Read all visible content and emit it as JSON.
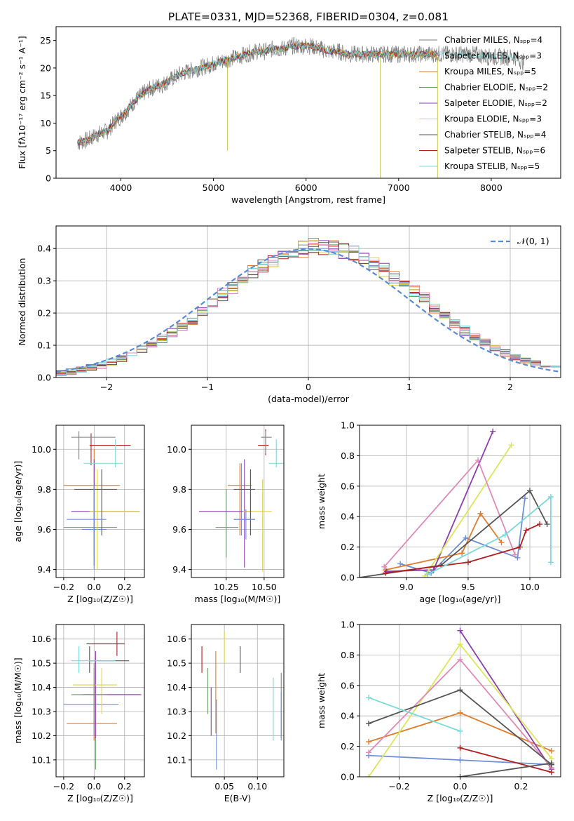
{
  "title": "PLATE=0331, MJD=52368, FIBERID=0304, z=0.081",
  "model_colors": [
    "#7f7f7f",
    "#6e8fd8",
    "#e07c2c",
    "#6b9a6b",
    "#8b3fb0",
    "#e0d14a",
    "#555555",
    "#b01e1e",
    "#7ad9d9"
  ],
  "chart_data": [
    {
      "id": "spectrum",
      "type": "line",
      "xlabel": "wavelength [Angstrom, rest frame]",
      "ylabel": "Flux [fλ10⁻¹⁷ erg cm⁻² s⁻¹ A⁻¹]",
      "xlim": [
        3300,
        8750
      ],
      "ylim": [
        0,
        27.5
      ],
      "xticks": [
        4000,
        5000,
        6000,
        7000,
        8000
      ],
      "yticks": [
        0,
        5,
        10,
        15,
        20,
        25
      ],
      "grid": false,
      "legend_position": "right",
      "legend": [
        "Chabrier MILES, Nₛₚₚ=4",
        "Salpeter MILES, Nₛₚₚ=3",
        "Kroupa MILES, Nₛₚₚ=5",
        "Chabrier ELODIE, Nₛₚₚ=2",
        "Salpeter ELODIE, Nₛₚₚ=2",
        "Kroupa ELODIE, Nₛₚₚ=3",
        "Chabrier STELIB, Nₛₚₚ=4",
        "Salpeter STELIB, Nₛₚₚ=6",
        "Kroupa STELIB, Nₛₚₚ=5"
      ],
      "legend_colors": [
        "#7f7f7f",
        "#6e8fd8",
        "#e07c2c",
        "#6b9a6b",
        "#8b3fb0",
        "#e0d14a",
        "#555555",
        "#b01e1e",
        "#7ad9d9"
      ],
      "continuum": {
        "x": [
          3550,
          3650,
          3750,
          3850,
          3950,
          4050,
          4150,
          4250,
          4350,
          4450,
          4550,
          4650,
          4750,
          4850,
          4950,
          5050,
          5150,
          5250,
          5350,
          5450,
          5550,
          5650,
          5750,
          5850,
          5950,
          6050,
          6150,
          6250,
          6350,
          6450,
          6550,
          6650,
          6750,
          6850,
          6950,
          7050,
          7150,
          7250,
          7350,
          7450,
          7550,
          7650,
          7750,
          7850,
          7950,
          8050,
          8150,
          8250,
          8350,
          8450
        ],
        "y": [
          6.5,
          7,
          8,
          8.5,
          10.5,
          12,
          14,
          15.5,
          16.5,
          17,
          18,
          19,
          19.5,
          20,
          20.5,
          21,
          21.5,
          22,
          22.5,
          23,
          23,
          23.5,
          23.5,
          24,
          24,
          24,
          23.5,
          23,
          23,
          22.5,
          22.5,
          22.5,
          22.5,
          22.5,
          22.5,
          22.5,
          22.5,
          22.5,
          22.5,
          22.5,
          22.5,
          22.5,
          22.5,
          22.5,
          22,
          22,
          22,
          22,
          21,
          19.5
        ]
      }
    },
    {
      "id": "residuals",
      "type": "line",
      "xlabel": "(data-model)/error",
      "ylabel": "Normed distribution",
      "xlim": [
        -2.5,
        2.5
      ],
      "ylim": [
        0,
        0.47
      ],
      "xticks": [
        -2,
        -1,
        0,
        1,
        2
      ],
      "yticks": [
        0.0,
        0.1,
        0.2,
        0.3,
        0.4
      ],
      "xticklabels": [
        "−2",
        "−1",
        "0",
        "1",
        "2"
      ],
      "yticklabels": [
        "0.0",
        "0.1",
        "0.2",
        "0.3",
        "0.4"
      ],
      "grid": true,
      "legend_position": "top-right",
      "legend": [
        "𝒩(0, 1)"
      ],
      "histogram_bin_width": 0.1
    },
    {
      "id": "age-vs-Z",
      "type": "scatter",
      "xlabel": "Z [log₁₀(Z/Z☉)]",
      "ylabel": "age  [log₁₀(age/yr)]",
      "xlim": [
        -0.25,
        0.33
      ],
      "ylim": [
        9.36,
        10.12
      ],
      "xticks": [
        -0.2,
        0.0,
        0.2
      ],
      "yticks": [
        9.4,
        9.6,
        9.8,
        10.0
      ],
      "xticklabels": [
        "−0.2",
        "0.0",
        "0.2"
      ],
      "yticklabels": [
        "9.4",
        "9.6",
        "9.8",
        "10.0"
      ],
      "grid": true,
      "points": [
        {
          "x": 0.0,
          "y": 9.6,
          "xlo": -0.08,
          "xhi": 0.08,
          "ylo": 9.4,
          "yhi": 9.8
        },
        {
          "x": 0.0,
          "y": 9.82,
          "xlo": -0.2,
          "xhi": 0.17,
          "ylo": 9.6,
          "yhi": 10.0
        },
        {
          "x": 0.0,
          "y": 9.61,
          "xlo": -0.2,
          "xhi": 0.15,
          "ylo": 9.47,
          "yhi": 9.75
        },
        {
          "x": 0.0,
          "y": 9.69,
          "xlo": -0.15,
          "xhi": 0.3,
          "ylo": 9.42,
          "yhi": 9.95
        },
        {
          "x": 0.02,
          "y": 9.69,
          "xlo": -0.03,
          "xhi": 0.3,
          "ylo": 9.4,
          "yhi": 9.9
        },
        {
          "x": 0.05,
          "y": 9.8,
          "xlo": -0.13,
          "xhi": 0.15,
          "ylo": 9.57,
          "yhi": 9.9
        },
        {
          "x": -0.02,
          "y": 10.02,
          "xlo": -0.03,
          "xhi": 0.24,
          "ylo": 9.92,
          "yhi": 10.08
        },
        {
          "x": 0.14,
          "y": 9.93,
          "xlo": -0.07,
          "xhi": 0.19,
          "ylo": 9.91,
          "yhi": 10.05
        },
        {
          "x": -0.1,
          "y": 10.06,
          "xlo": -0.15,
          "xhi": 0.14,
          "ylo": 9.95,
          "yhi": 10.09
        },
        {
          "x": 0.0,
          "y": 9.65,
          "xlo": -0.18,
          "xhi": 0.08,
          "ylo": 9.42,
          "yhi": 9.82
        }
      ]
    },
    {
      "id": "age-vs-mass",
      "type": "scatter",
      "xlabel": "mass [log₁₀(M/M☉)]",
      "ylabel": "",
      "xlim": [
        10.02,
        10.63
      ],
      "ylim": [
        9.36,
        10.12
      ],
      "xticks": [
        10.25,
        10.5
      ],
      "yticks": [
        9.4,
        9.6,
        9.8,
        10.0
      ],
      "xticklabels": [
        "10.25",
        "10.50"
      ],
      "yticklabels": [
        "9.4",
        "9.6",
        "9.8",
        "10.0"
      ],
      "grid": true,
      "points": [
        {
          "x": 10.35,
          "y": 9.65,
          "xlo": 10.3,
          "xhi": 10.44,
          "ylo": 9.57,
          "yhi": 9.93
        },
        {
          "x": 10.34,
          "y": 9.82,
          "xlo": 10.26,
          "xhi": 10.42,
          "ylo": 9.57,
          "yhi": 9.93
        },
        {
          "x": 10.25,
          "y": 9.61,
          "xlo": 10.18,
          "xhi": 10.33,
          "ylo": 9.46,
          "yhi": 9.8
        },
        {
          "x": 10.37,
          "y": 9.69,
          "xlo": 10.07,
          "xhi": 10.42,
          "ylo": 9.41,
          "yhi": 9.95
        },
        {
          "x": 10.49,
          "y": 9.69,
          "xlo": 10.36,
          "xhi": 10.55,
          "ylo": 9.39,
          "yhi": 9.85
        },
        {
          "x": 10.41,
          "y": 9.8,
          "xlo": 10.3,
          "xhi": 10.44,
          "ylo": 9.57,
          "yhi": 9.9
        },
        {
          "x": 10.51,
          "y": 10.02,
          "xlo": 10.46,
          "xhi": 10.53,
          "ylo": 9.97,
          "yhi": 10.1
        },
        {
          "x": 10.58,
          "y": 9.93,
          "xlo": 10.53,
          "xhi": 10.63,
          "ylo": 9.91,
          "yhi": 10.05
        },
        {
          "x": 10.51,
          "y": 10.06,
          "xlo": 10.48,
          "xhi": 10.55,
          "ylo": 9.98,
          "yhi": 10.09
        },
        {
          "x": 10.38,
          "y": 9.65,
          "xlo": 10.3,
          "xhi": 10.44,
          "ylo": 9.55,
          "yhi": 9.7
        }
      ]
    },
    {
      "id": "weight-vs-age",
      "type": "line",
      "xlabel": "age  [log₁₀(age/yr)]",
      "ylabel": "mass weight",
      "xlim": [
        8.62,
        10.25
      ],
      "ylim": [
        0,
        1.0
      ],
      "xticks": [
        9.0,
        9.5,
        10.0
      ],
      "yticks": [
        0.0,
        0.2,
        0.4,
        0.6,
        0.8,
        1.0
      ],
      "xticklabels": [
        "9.0",
        "9.5",
        "10.0"
      ],
      "yticklabels": [
        "0.0",
        "0.2",
        "0.4",
        "0.6",
        "0.8",
        "1.0"
      ],
      "grid": true,
      "series": [
        {
          "x": [
            8.95,
            9.2,
            9.48,
            9.9,
            9.96
          ],
          "y": [
            0.09,
            0.03,
            0.26,
            0.13,
            0.52
          ]
        },
        {
          "x": [
            8.83,
            9.45,
            9.6,
            9.77
          ],
          "y": [
            0.05,
            0.16,
            0.42,
            0.23
          ]
        },
        {
          "x": [
            8.84,
            9.22,
            9.7
          ],
          "y": [
            0.04,
            0.05,
            0.96
          ]
        },
        {
          "x": [
            9.15,
            9.85
          ],
          "y": [
            0.01,
            0.87
          ]
        },
        {
          "x": [
            8.82,
            9.58,
            9.88
          ],
          "y": [
            0.07,
            0.77,
            0.15
          ]
        },
        {
          "x": [
            8.62,
            9.28,
            10.0,
            10.14
          ],
          "y": [
            0.0,
            0.08,
            0.57,
            0.35
          ]
        },
        {
          "x": [
            8.83,
            9.5,
            9.92,
            9.97,
            10.08
          ],
          "y": [
            0.03,
            0.1,
            0.2,
            0.31,
            0.35
          ]
        },
        {
          "x": [
            9.17,
            9.8,
            10.17,
            10.17
          ],
          "y": [
            0.02,
            0.28,
            0.53,
            0.1
          ]
        }
      ],
      "series_colors": [
        "#6e8fd8",
        "#e07c2c",
        "#8b3fb0",
        "#d8e85a",
        "#e08ab8",
        "#555555",
        "#b01e1e",
        "#7ad9d9"
      ]
    },
    {
      "id": "mass-vs-Z",
      "type": "scatter",
      "xlabel": "Z [log₁₀(Z/Z☉)]",
      "ylabel": "mass [log₁₀(M/M☉)]",
      "xlim": [
        -0.25,
        0.33
      ],
      "ylim": [
        10.03,
        10.66
      ],
      "xticks": [
        -0.2,
        0.0,
        0.2
      ],
      "yticks": [
        10.1,
        10.2,
        10.3,
        10.4,
        10.5,
        10.6
      ],
      "xticklabels": [
        "−0.2",
        "0.0",
        "0.2"
      ],
      "yticklabels": [
        "10.1",
        "10.2",
        "10.3",
        "10.4",
        "10.5",
        "10.6"
      ],
      "grid": true,
      "points": [
        {
          "x": 0.0,
          "y": 10.33,
          "xlo": -0.2,
          "xhi": 0.16,
          "ylo": 10.18,
          "yhi": 10.48
        },
        {
          "x": 0.0,
          "y": 10.25,
          "xlo": -0.18,
          "xhi": 0.15,
          "ylo": 10.18,
          "yhi": 10.42
        },
        {
          "x": 0.01,
          "y": 10.37,
          "xlo": -0.15,
          "xhi": 0.3,
          "ylo": 10.06,
          "yhi": 10.45
        },
        {
          "x": 0.01,
          "y": 10.37,
          "xlo": -0.06,
          "xhi": 0.31,
          "ylo": 10.19,
          "yhi": 10.55
        },
        {
          "x": 0.05,
          "y": 10.41,
          "xlo": -0.14,
          "xhi": 0.15,
          "ylo": 10.29,
          "yhi": 10.48
        },
        {
          "x": -0.03,
          "y": 10.51,
          "xlo": -0.03,
          "xhi": 0.23,
          "ylo": 10.46,
          "yhi": 10.57
        },
        {
          "x": 0.15,
          "y": 10.58,
          "xlo": -0.05,
          "xhi": 0.2,
          "ylo": 10.53,
          "yhi": 10.63
        },
        {
          "x": -0.1,
          "y": 10.51,
          "xlo": -0.15,
          "xhi": 0.14,
          "ylo": 10.46,
          "yhi": 10.57
        },
        {
          "x": 0.0,
          "y": 10.37,
          "xlo": -0.08,
          "xhi": 0.08,
          "ylo": 10.2,
          "yhi": 10.5
        }
      ]
    },
    {
      "id": "mass-vs-EBV",
      "type": "scatter",
      "xlabel": "E(B-V)",
      "ylabel": "",
      "xlim": [
        0.0,
        0.14
      ],
      "ylim": [
        10.03,
        10.66
      ],
      "xticks": [
        0.05,
        0.1
      ],
      "yticks": [
        10.1,
        10.2,
        10.3,
        10.4,
        10.5,
        10.6
      ],
      "xticklabels": [
        "0.05",
        "0.10"
      ],
      "yticklabels": [
        "10.1",
        "10.2",
        "10.3",
        "10.4",
        "10.5",
        "10.6"
      ],
      "grid": true,
      "points": [
        {
          "x": 0.038,
          "y": 10.2,
          "xlo": 0.038,
          "xhi": 0.038,
          "ylo": 10.06,
          "yhi": 10.35
        },
        {
          "x": 0.037,
          "y": 10.38,
          "xlo": 0.037,
          "xhi": 0.037,
          "ylo": 10.21,
          "yhi": 10.55
        },
        {
          "x": 0.025,
          "y": 10.38,
          "xlo": 0.025,
          "xhi": 0.025,
          "ylo": 10.29,
          "yhi": 10.48
        },
        {
          "x": 0.03,
          "y": 10.37,
          "xlo": 0.03,
          "xhi": 0.03,
          "ylo": 10.2,
          "yhi": 10.4
        },
        {
          "x": 0.05,
          "y": 10.58,
          "xlo": 0.05,
          "xhi": 0.05,
          "ylo": 10.5,
          "yhi": 10.63
        },
        {
          "x": 0.074,
          "y": 10.51,
          "xlo": 0.074,
          "xhi": 0.074,
          "ylo": 10.46,
          "yhi": 10.57
        },
        {
          "x": 0.016,
          "y": 10.51,
          "xlo": 0.016,
          "xhi": 0.016,
          "ylo": 10.46,
          "yhi": 10.57
        },
        {
          "x": 0.124,
          "y": 10.33,
          "xlo": 0.124,
          "xhi": 0.124,
          "ylo": 10.18,
          "yhi": 10.44
        },
        {
          "x": 0.136,
          "y": 10.33,
          "xlo": 0.136,
          "xhi": 0.136,
          "ylo": 10.19,
          "yhi": 10.46
        },
        {
          "x": 0.136,
          "y": 10.25,
          "xlo": 0.136,
          "xhi": 0.136,
          "ylo": 10.18,
          "yhi": 10.38
        }
      ]
    },
    {
      "id": "weight-vs-Z",
      "type": "line",
      "xlabel": "Z [log₁₀(Z/Z☉)]",
      "ylabel": "mass weight",
      "xlim": [
        -0.33,
        0.33
      ],
      "ylim": [
        0,
        1.0
      ],
      "xticks": [
        -0.2,
        0.0,
        0.2
      ],
      "yticks": [
        0.0,
        0.2,
        0.4,
        0.6,
        0.8,
        1.0
      ],
      "xticklabels": [
        "−0.2",
        "0.0",
        "0.2"
      ],
      "yticklabels": [
        "0.0",
        "0.2",
        "0.4",
        "0.6",
        "0.8",
        "1.0"
      ],
      "grid": true,
      "series": [
        {
          "x": [
            -0.3,
            0.0,
            0.3
          ],
          "y": [
            0.14,
            0.11,
            0.08
          ]
        },
        {
          "x": [
            -0.3,
            0.0,
            0.3
          ],
          "y": [
            0.23,
            0.42,
            0.17
          ]
        },
        {
          "x": [
            0.0,
            0.3
          ],
          "y": [
            0.96,
            0.05
          ]
        },
        {
          "x": [
            -0.3,
            0.0,
            0.3
          ],
          "y": [
            0.0,
            0.87,
            0.12
          ]
        },
        {
          "x": [
            -0.3,
            0.0,
            0.3
          ],
          "y": [
            0.16,
            0.77,
            0.06
          ]
        },
        {
          "x": [
            -0.3,
            0.0,
            0.3
          ],
          "y": [
            0.35,
            0.57,
            0.08
          ]
        },
        {
          "x": [
            0.0,
            0.3
          ],
          "y": [
            0.19,
            0.03
          ]
        },
        {
          "x": [
            -0.3,
            0.0
          ],
          "y": [
            0.52,
            0.3
          ]
        },
        {
          "x": [
            0.0,
            0.3
          ],
          "y": [
            0.0,
            0.09
          ]
        }
      ],
      "series_colors": [
        "#6e8fd8",
        "#e07c2c",
        "#8b3fb0",
        "#d8e85a",
        "#e08ab8",
        "#555555",
        "#b01e1e",
        "#7ad9d9",
        "#555555"
      ]
    }
  ]
}
